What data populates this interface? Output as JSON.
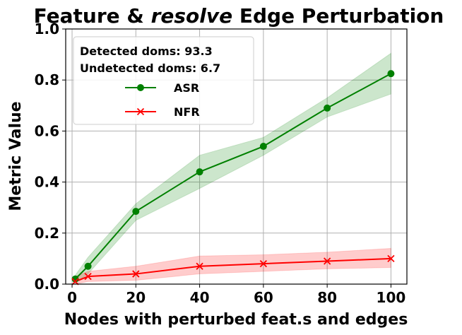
{
  "chart_data": {
    "type": "line",
    "title_parts": [
      "Feature & ",
      "resolve",
      " Edge Perturbation"
    ],
    "xlabel": "Nodes with perturbed feat.s and edges",
    "ylabel": "Metric Value",
    "xlim": [
      -2,
      105
    ],
    "ylim": [
      0,
      1.0
    ],
    "xticks": [
      0,
      20,
      40,
      60,
      80,
      100
    ],
    "yticks": [
      0.0,
      0.2,
      0.4,
      0.6,
      0.8,
      1.0
    ],
    "grid": true,
    "legend_position": "top-left",
    "annotations": [
      "Detected doms: 93.3",
      "Undetected doms: 6.7"
    ],
    "x": [
      1,
      5,
      20,
      40,
      60,
      80,
      100
    ],
    "series": [
      {
        "name": "ASR",
        "color": "#008000",
        "marker": "circle",
        "values": [
          0.02,
          0.07,
          0.285,
          0.44,
          0.54,
          0.69,
          0.825
        ],
        "lower": [
          0.005,
          0.04,
          0.25,
          0.375,
          0.505,
          0.655,
          0.745
        ],
        "upper": [
          0.035,
          0.105,
          0.315,
          0.505,
          0.575,
          0.73,
          0.905
        ]
      },
      {
        "name": "NFR",
        "color": "#ff0000",
        "marker": "x",
        "values": [
          0.01,
          0.03,
          0.04,
          0.07,
          0.08,
          0.09,
          0.1
        ],
        "lower": [
          0.0,
          0.01,
          0.015,
          0.04,
          0.05,
          0.06,
          0.065
        ],
        "upper": [
          0.03,
          0.05,
          0.07,
          0.11,
          0.115,
          0.125,
          0.14
        ]
      }
    ]
  }
}
